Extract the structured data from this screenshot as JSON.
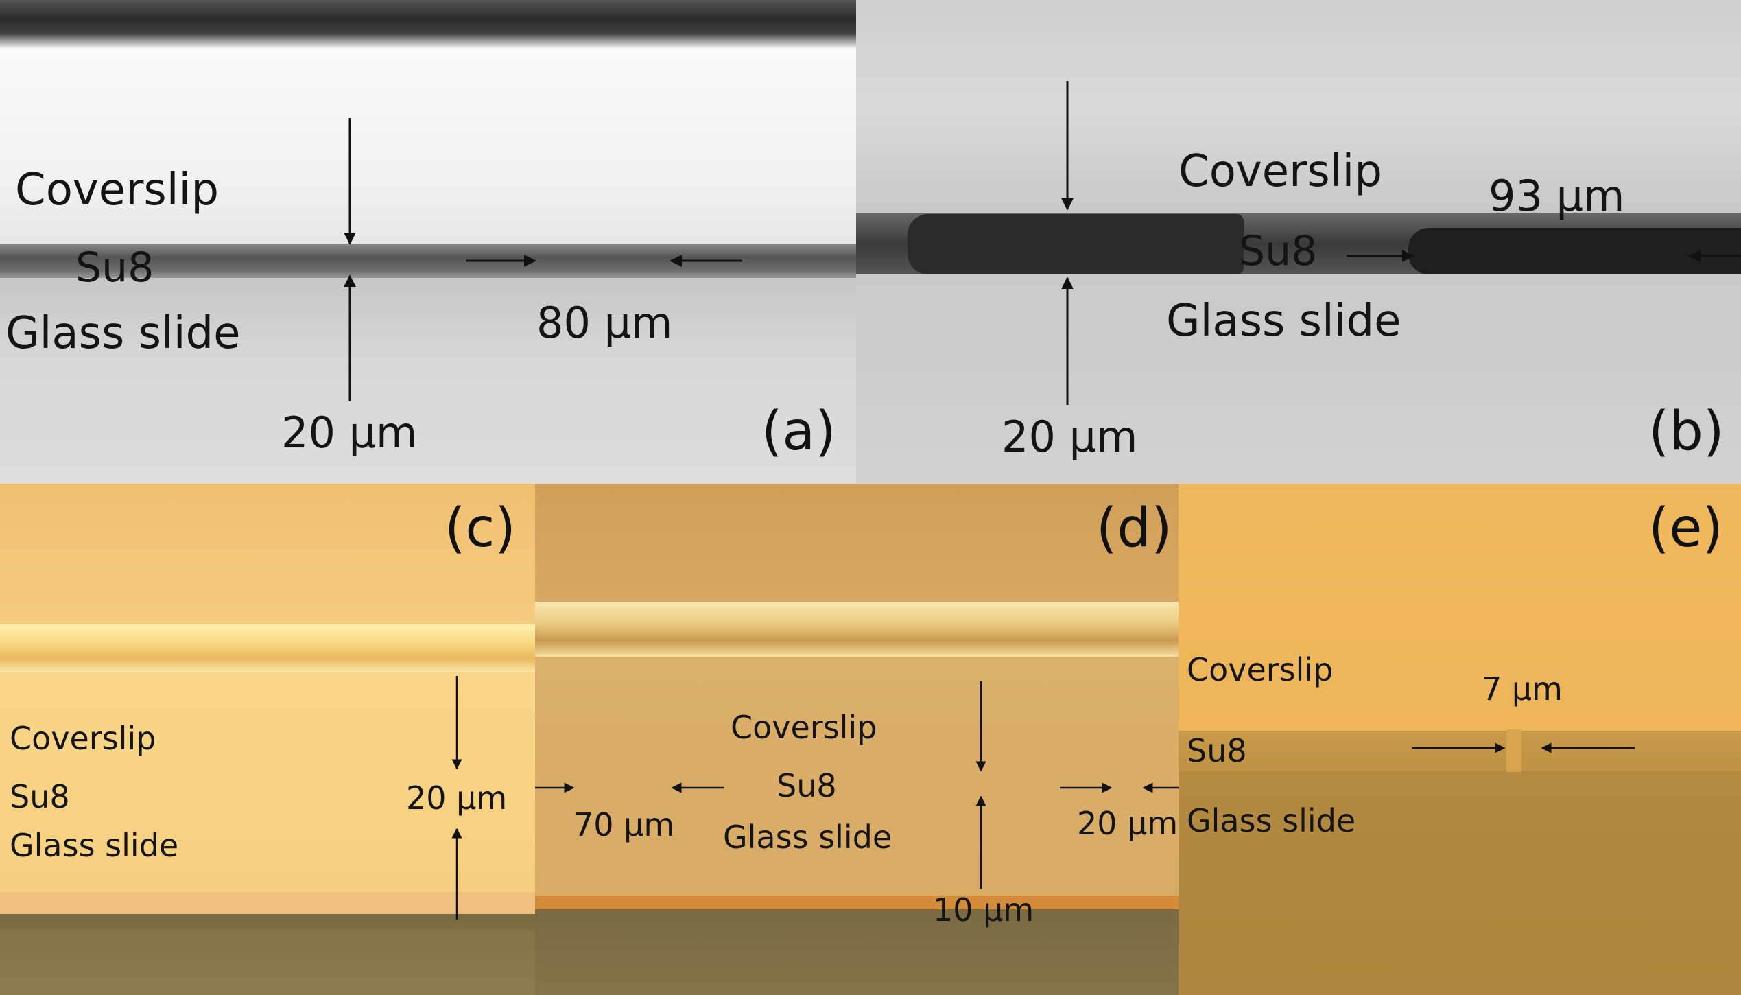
{
  "panels": {
    "a": {
      "tag": "(a)",
      "coverslip": "Coverslip",
      "su8": "Su8",
      "glass": "Glass slide",
      "height": "20 µm",
      "width": "80 µm"
    },
    "b": {
      "tag": "(b)",
      "coverslip": "Coverslip",
      "su8": "Su8",
      "glass": "Glass slide",
      "height": "20 µm",
      "width": "93 µm"
    },
    "c": {
      "tag": "(c)",
      "coverslip": "Coverslip",
      "su8": "Su8",
      "glass": "Glass slide",
      "height": "20 µm"
    },
    "d": {
      "tag": "(d)",
      "coverslip": "Coverslip",
      "su8": "Su8",
      "glass": "Glass slide",
      "width_left": "70 µm",
      "width_right": "20 µm",
      "height": "10 µm"
    },
    "e": {
      "tag": "(e)",
      "coverslip": "Coverslip",
      "su8": "Su8",
      "glass": "Glass slide",
      "width": "7 µm"
    }
  },
  "colors": {
    "annotation": "#111111",
    "gray_bg": "#d8d8d8",
    "amber_bg": "#edb55a",
    "su8_dark": "#3c3c3c"
  }
}
